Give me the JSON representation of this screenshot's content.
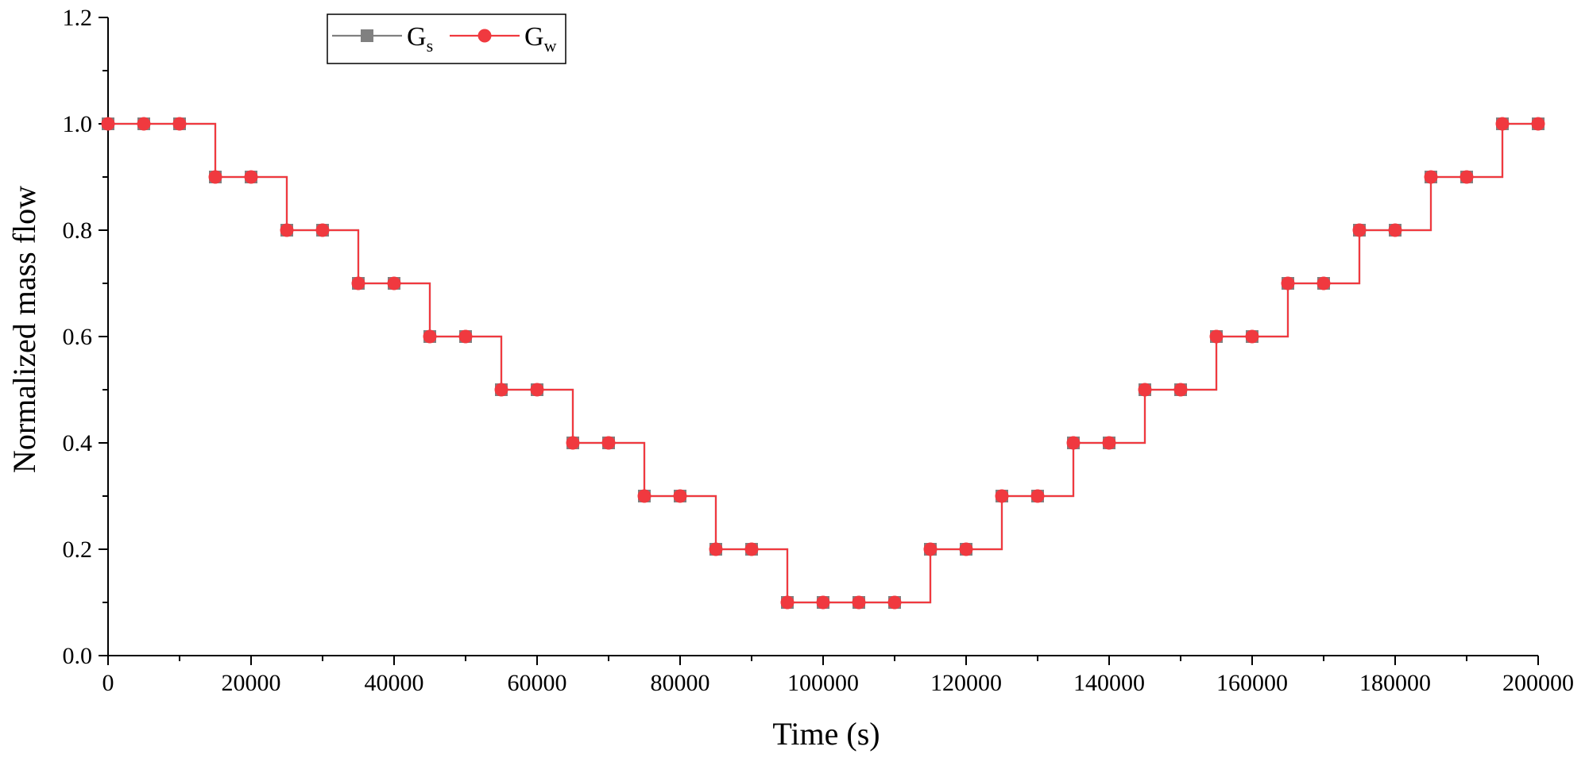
{
  "chart_data": {
    "type": "line",
    "title": "",
    "xlabel": "Time (s)",
    "ylabel": "Normalized mass flow",
    "xlim": [
      0,
      200000
    ],
    "ylim": [
      0.0,
      1.2
    ],
    "xticks": [
      "0",
      "20000",
      "40000",
      "60000",
      "80000",
      "100000",
      "120000",
      "140000",
      "160000",
      "180000",
      "200000"
    ],
    "yticks": [
      "0.0",
      "0.2",
      "0.4",
      "0.6",
      "0.8",
      "1.0",
      "1.2"
    ],
    "grid": false,
    "legend_position": "top-left",
    "x": [
      0,
      5000,
      10000,
      15000,
      20000,
      25000,
      30000,
      35000,
      40000,
      45000,
      50000,
      55000,
      60000,
      65000,
      70000,
      75000,
      80000,
      85000,
      90000,
      95000,
      100000,
      105000,
      110000,
      115000,
      120000,
      125000,
      130000,
      135000,
      140000,
      145000,
      150000,
      155000,
      160000,
      165000,
      170000,
      175000,
      180000,
      185000,
      190000,
      195000,
      200000
    ],
    "series": [
      {
        "name": "Gs",
        "name_main": "G",
        "name_sub": "s",
        "color": "#808080",
        "marker": "square",
        "values": [
          1.0,
          1.0,
          1.0,
          0.9,
          0.9,
          0.8,
          0.8,
          0.7,
          0.7,
          0.6,
          0.6,
          0.5,
          0.5,
          0.4,
          0.4,
          0.3,
          0.3,
          0.2,
          0.2,
          0.1,
          0.1,
          0.1,
          0.1,
          0.2,
          0.2,
          0.3,
          0.3,
          0.4,
          0.4,
          0.5,
          0.5,
          0.6,
          0.6,
          0.7,
          0.7,
          0.8,
          0.8,
          0.9,
          0.9,
          1.0,
          1.0
        ]
      },
      {
        "name": "Gw",
        "name_main": "G",
        "name_sub": "w",
        "color": "#f0393f",
        "marker": "circle",
        "values": [
          1.0,
          1.0,
          1.0,
          0.9,
          0.9,
          0.8,
          0.8,
          0.7,
          0.7,
          0.6,
          0.6,
          0.5,
          0.5,
          0.4,
          0.4,
          0.3,
          0.3,
          0.2,
          0.2,
          0.1,
          0.1,
          0.1,
          0.1,
          0.2,
          0.2,
          0.3,
          0.3,
          0.4,
          0.4,
          0.5,
          0.5,
          0.6,
          0.6,
          0.7,
          0.7,
          0.8,
          0.8,
          0.9,
          0.9,
          1.0,
          1.0
        ]
      }
    ]
  }
}
